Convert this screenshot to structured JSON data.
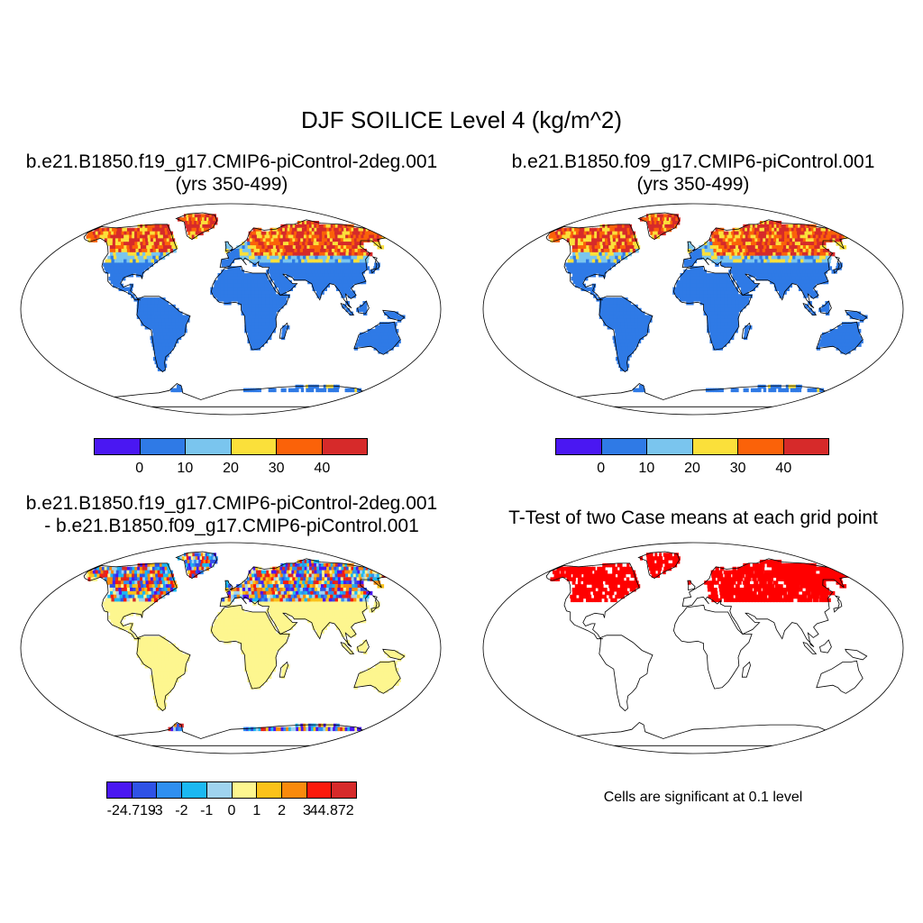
{
  "main_title": "DJF SOILICE Level 4 (kg/m^2)",
  "panels": [
    {
      "title_line1": "b.e21.B1850.f19_g17.CMIP6-piControl-2deg.001",
      "title_line2": "(yrs 350-499)"
    },
    {
      "title_line1": "b.e21.B1850.f09_g17.CMIP6-piControl.001",
      "title_line2": "(yrs 350-499)"
    },
    {
      "title_line1": "b.e21.B1850.f19_g17.CMIP6-piControl-2deg.001",
      "title_line2": "- b.e21.B1850.f09_g17.CMIP6-piControl.001"
    },
    {
      "title_line1": "T-Test of two Case means at each grid point",
      "title_line2": ""
    }
  ],
  "colorbar_top": {
    "colors": [
      "#4a17f2",
      "#2f7ae6",
      "#7ac5ee",
      "#fbe03a",
      "#fb6209",
      "#d62a2a"
    ],
    "labels": [
      "0",
      "10",
      "20",
      "30",
      "40"
    ]
  },
  "colorbar_diff": {
    "colors": [
      "#4a17f2",
      "#2f52e6",
      "#2f8ff0",
      "#1bb8f2",
      "#9fd3ef",
      "#fdf68f",
      "#fbc21a",
      "#f98a0c",
      "#fb1a0c",
      "#d62a2a"
    ],
    "labels": [
      "-24.719",
      "-3",
      "-2",
      "-1",
      "0",
      "1",
      "2",
      "3",
      "44.872"
    ]
  },
  "ttest_note": "Cells are significant at 0.1 level",
  "colors": {
    "land_base": "#2f7ae6",
    "diff_base": "#fdf68f",
    "significant": "#ff0000"
  }
}
